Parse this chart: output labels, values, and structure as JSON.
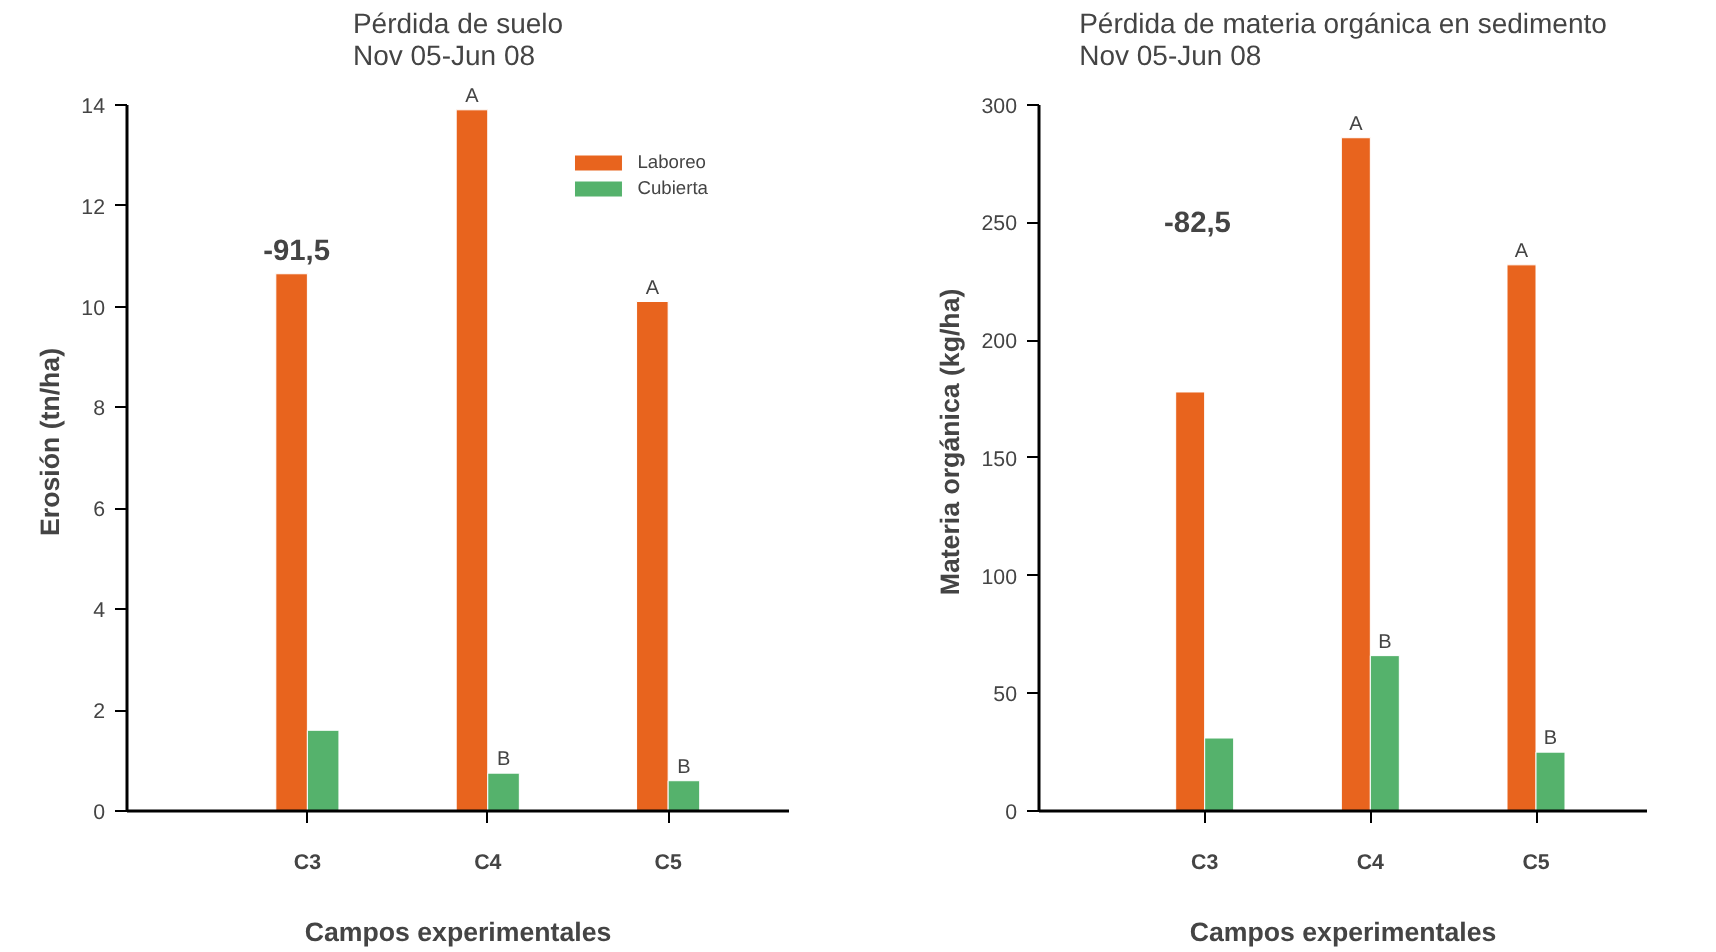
{
  "chart_data": [
    {
      "type": "bar",
      "title": "Pérdida de suelo\nNov 05-Jun 08",
      "xlabel": "Campos experimentales",
      "ylabel": "Erosión (tn/ha)",
      "categories": [
        "C3",
        "C4",
        "C5"
      ],
      "series": [
        {
          "name": "Laboreo",
          "color": "#e8641e",
          "values": [
            10.65,
            13.9,
            10.1
          ]
        },
        {
          "name": "Cubierta",
          "color": "#55b26c",
          "values": [
            1.6,
            0.75,
            0.6
          ]
        }
      ],
      "ylim": [
        0,
        14
      ],
      "yticks": [
        0,
        2,
        4,
        6,
        8,
        10,
        12,
        14
      ],
      "grid": false,
      "legend": "top right",
      "annotations": [
        "-91,5",
        {
          "text": "A",
          "x": "C4",
          "y": 13.9
        },
        {
          "text": "B",
          "x": "C4",
          "y": 0.75
        },
        {
          "text": "A",
          "x": "C5",
          "y": 10.1
        },
        {
          "text": "B",
          "x": "C5",
          "y": 0.6
        }
      ]
    },
    {
      "type": "bar",
      "title": "Pérdida de materia orgánica en sedimento\nNov 05-Jun 08",
      "xlabel": "Campos experimentales",
      "ylabel": "Materia orgánica (kg/ha)",
      "categories": [
        "C3",
        "C4",
        "C5"
      ],
      "series": [
        {
          "color": "#e8641e",
          "values": [
            178,
            286,
            232
          ]
        },
        {
          "color": "#55b26c",
          "values": [
            31,
            66,
            25
          ]
        }
      ],
      "ylim": [
        0,
        300
      ],
      "yticks": [
        0,
        50,
        100,
        150,
        200,
        250,
        300
      ],
      "grid": false,
      "legend": false,
      "annotations": [
        "-82,5",
        {
          "text": "A",
          "x": "C4",
          "y": 286
        },
        {
          "text": "B",
          "x": "C4",
          "y": 66
        },
        {
          "text": "A",
          "x": "C5",
          "y": 232
        },
        {
          "text": "B",
          "x": "C5",
          "y": 25
        }
      ]
    }
  ]
}
